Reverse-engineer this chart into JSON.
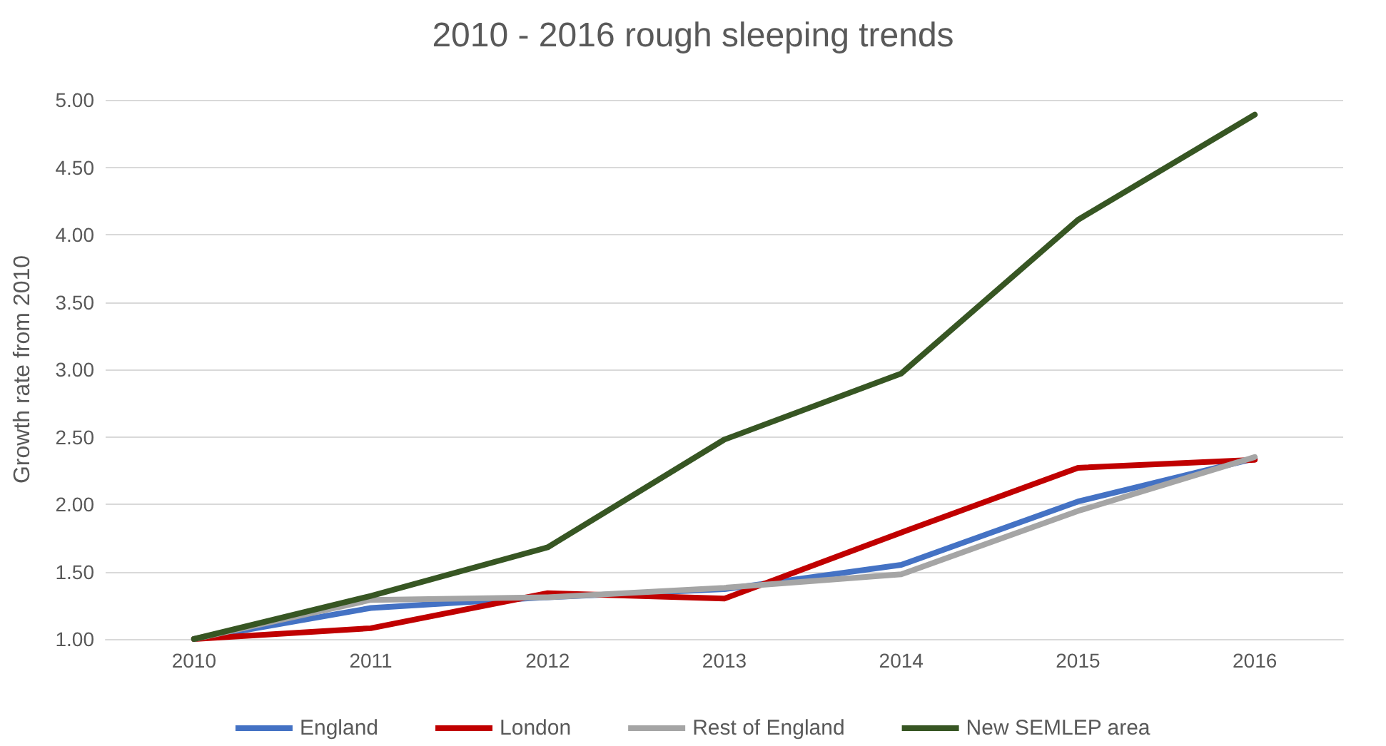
{
  "chart_data": {
    "type": "line",
    "title": "2010 - 2016 rough sleeping trends",
    "ylabel": "Growth rate from 2010",
    "categories": [
      "2010",
      "2011",
      "2012",
      "2013",
      "2014",
      "2015",
      "2016"
    ],
    "series": [
      {
        "name": "England",
        "color": "#4472c4",
        "values": [
          1.0,
          1.23,
          1.31,
          1.37,
          1.55,
          2.02,
          2.34
        ]
      },
      {
        "name": "London",
        "color": "#c00000",
        "values": [
          1.0,
          1.08,
          1.34,
          1.3,
          1.79,
          2.27,
          2.33
        ]
      },
      {
        "name": "Rest of England",
        "color": "#a5a5a5",
        "values": [
          1.0,
          1.29,
          1.31,
          1.38,
          1.48,
          1.95,
          2.35
        ]
      },
      {
        "name": "New SEMLEP area",
        "color": "#375623",
        "values": [
          1.0,
          1.32,
          1.68,
          2.48,
          2.97,
          4.11,
          4.89
        ]
      }
    ],
    "ylim": [
      1,
      5
    ],
    "yticks": [
      {
        "value": 1,
        "label": "1.00"
      },
      {
        "value": 1.5,
        "label": "1.50"
      },
      {
        "value": 2,
        "label": "2.00"
      },
      {
        "value": 2.5,
        "label": "2.50"
      },
      {
        "value": 3,
        "label": "3.00"
      },
      {
        "value": 3.5,
        "label": "3.50"
      },
      {
        "value": 4,
        "label": "4.00"
      },
      {
        "value": 4.5,
        "label": "4.50"
      },
      {
        "value": 5,
        "label": "5.00"
      }
    ],
    "grid": "y",
    "legend": "bottom",
    "marker": "none",
    "line_style": "solid"
  }
}
